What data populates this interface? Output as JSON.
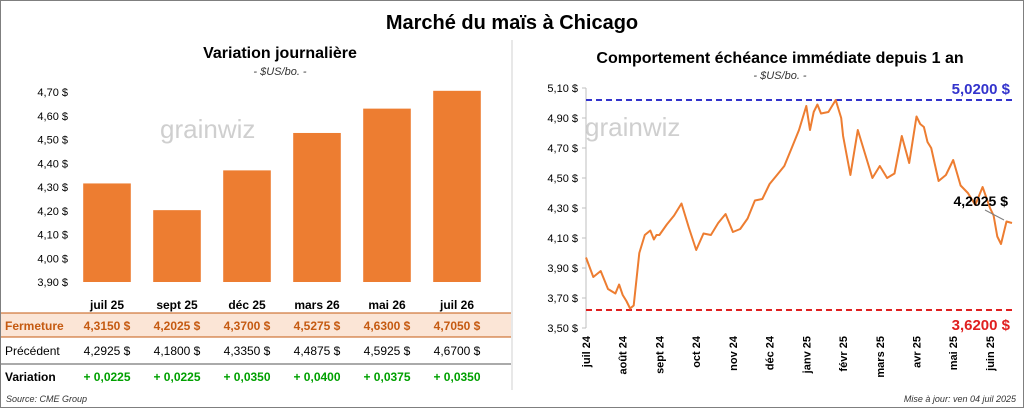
{
  "title": "Marché du maïs à Chicago",
  "source": "Source: CME Group",
  "updated": "Mise à jour: ven 04 juil 2025",
  "watermark": "grainwiz",
  "chart_data": [
    {
      "type": "bar",
      "title": "Variation journalière",
      "subtitle": "- $US/bo. -",
      "categories": [
        "juil 25",
        "sept 25",
        "déc 25",
        "mars 26",
        "mai 26",
        "juil 26"
      ],
      "values": [
        4.315,
        4.2025,
        4.37,
        4.5275,
        4.63,
        4.705
      ],
      "ylim": [
        3.9,
        4.7
      ],
      "yticks": [
        "3,90 $",
        "4,00 $",
        "4,10 $",
        "4,20 $",
        "4,30 $",
        "4,40 $",
        "4,50 $",
        "4,60 $",
        "4,70 $"
      ],
      "bar_color": "#ed7d31",
      "table": {
        "rows": [
          {
            "label": "Fermeture",
            "cells": [
              "4,3150  $",
              "4,2025  $",
              "4,3700  $",
              "4,5275  $",
              "4,6300  $",
              "4,7050  $"
            ],
            "color": "#c55a11",
            "background": "#fbe5d6"
          },
          {
            "label": "Précédent",
            "cells": [
              "4,2925  $",
              "4,1800  $",
              "4,3350  $",
              "4,4875  $",
              "4,5925  $",
              "4,6700  $"
            ],
            "color": "#000000"
          },
          {
            "label": "Variation",
            "cells": [
              "+ 0,0225",
              "+ 0,0225",
              "+ 0,0350",
              "+ 0,0400",
              "+ 0,0375",
              "+ 0,0350"
            ],
            "color": "#00a000"
          }
        ]
      }
    },
    {
      "type": "line",
      "title": "Comportement échéance immédiate depuis 1 an",
      "subtitle": "- $US/bo. -",
      "ylim": [
        3.5,
        5.1
      ],
      "yticks": [
        "3,50 $",
        "3,70 $",
        "3,90 $",
        "4,10 $",
        "4,30 $",
        "4,50 $",
        "4,70 $",
        "4,90 $",
        "5,10 $"
      ],
      "xticks": [
        "juil 24",
        "août 24",
        "sept 24",
        "oct 24",
        "nov 24",
        "déc 24",
        "janv 25",
        "févr 25",
        "mars 25",
        "avr 25",
        "mai 25",
        "juin 25"
      ],
      "line_color": "#ed7d31",
      "max_line": {
        "value": 5.02,
        "label": "5,0200 $",
        "color": "#3333cc"
      },
      "min_line": {
        "value": 3.62,
        "label": "3,6200 $",
        "color": "#e02020"
      },
      "last_label": "4,2025 $",
      "series_x": [
        0,
        0.2,
        0.4,
        0.6,
        0.8,
        0.9,
        1.0,
        1.1,
        1.2,
        1.3,
        1.45,
        1.6,
        1.75,
        1.85,
        1.92,
        2.0,
        2.2,
        2.4,
        2.6,
        2.8,
        3.0,
        3.2,
        3.4,
        3.6,
        3.8,
        4.0,
        4.2,
        4.4,
        4.6,
        4.8,
        5.0,
        5.2,
        5.4,
        5.6,
        5.8,
        6.0,
        6.1,
        6.2,
        6.3,
        6.4,
        6.6,
        6.8,
        6.95,
        7.0,
        7.2,
        7.4,
        7.6,
        7.8,
        8.0,
        8.2,
        8.4,
        8.6,
        8.8,
        9.0,
        9.1,
        9.2,
        9.3,
        9.4,
        9.6,
        9.8,
        10.0,
        10.2,
        10.4,
        10.6,
        10.8,
        11.0,
        11.1,
        11.2,
        11.3,
        11.45,
        11.6
      ],
      "series_y": [
        3.97,
        3.84,
        3.88,
        3.76,
        3.73,
        3.79,
        3.72,
        3.68,
        3.63,
        3.65,
        4.0,
        4.12,
        4.15,
        4.09,
        4.12,
        4.12,
        4.19,
        4.25,
        4.33,
        4.17,
        4.02,
        4.13,
        4.12,
        4.2,
        4.26,
        4.14,
        4.16,
        4.23,
        4.35,
        4.36,
        4.46,
        4.52,
        4.58,
        4.7,
        4.82,
        4.98,
        4.82,
        4.94,
        4.99,
        4.93,
        4.94,
        5.02,
        4.9,
        4.78,
        4.52,
        4.82,
        4.66,
        4.5,
        4.58,
        4.5,
        4.53,
        4.78,
        4.6,
        4.91,
        4.86,
        4.84,
        4.74,
        4.7,
        4.48,
        4.52,
        4.62,
        4.45,
        4.4,
        4.32,
        4.44,
        4.3,
        4.25,
        4.11,
        4.06,
        4.21,
        4.2
      ]
    }
  ]
}
